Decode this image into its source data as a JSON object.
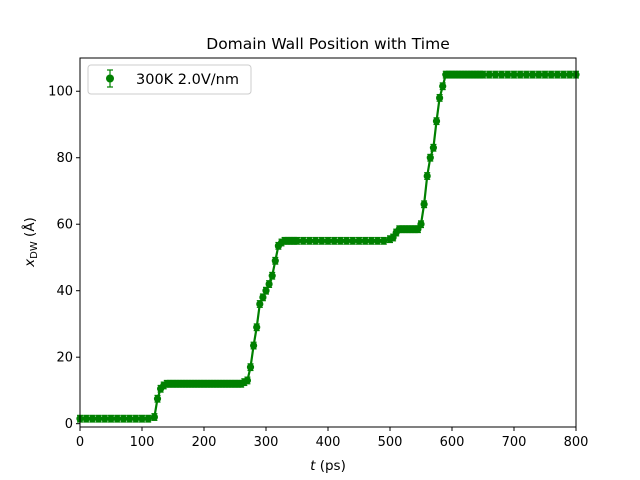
{
  "chart_data": {
    "type": "scatter",
    "title": "Domain Wall Position with Time",
    "xlabel_italic": "t",
    "xlabel_rest": " (ps)",
    "ylabel_main": "x",
    "ylabel_sub": "DW",
    "ylabel_rest": " (Å)",
    "xlim": [
      0,
      800
    ],
    "ylim": [
      -1,
      110
    ],
    "xticks": [
      0,
      100,
      200,
      300,
      400,
      500,
      600,
      700,
      800
    ],
    "yticks": [
      0,
      20,
      40,
      60,
      80,
      100
    ],
    "grid": false,
    "legend": {
      "position": "top-left",
      "entries": [
        "300K 2.0V/nm"
      ]
    },
    "series": [
      {
        "name": "300K 2.0V/nm",
        "color": "#008000",
        "x": [
          0,
          10,
          20,
          30,
          40,
          50,
          60,
          70,
          80,
          90,
          100,
          110,
          120,
          125,
          130,
          135,
          140,
          145,
          150,
          155,
          160,
          165,
          170,
          175,
          180,
          185,
          190,
          195,
          200,
          205,
          210,
          215,
          220,
          225,
          230,
          235,
          240,
          245,
          250,
          255,
          260,
          265,
          270,
          275,
          280,
          285,
          290,
          295,
          300,
          305,
          310,
          315,
          320,
          325,
          330,
          335,
          340,
          345,
          350,
          360,
          370,
          380,
          390,
          400,
          410,
          420,
          430,
          440,
          450,
          460,
          470,
          480,
          490,
          500,
          505,
          510,
          515,
          520,
          525,
          530,
          535,
          540,
          545,
          550,
          555,
          560,
          565,
          570,
          575,
          580,
          585,
          590,
          595,
          600,
          605,
          610,
          615,
          620,
          625,
          630,
          635,
          640,
          645,
          650,
          660,
          670,
          680,
          690,
          700,
          710,
          720,
          730,
          740,
          750,
          760,
          770,
          780,
          790,
          800
        ],
        "y": [
          1.5,
          1.5,
          1.5,
          1.5,
          1.5,
          1.5,
          1.5,
          1.5,
          1.5,
          1.5,
          1.5,
          1.5,
          2.0,
          7.5,
          10.5,
          11.5,
          12.0,
          12.0,
          12.0,
          12.0,
          12.0,
          12.0,
          12.0,
          12.0,
          12.0,
          12.0,
          12.0,
          12.0,
          12.0,
          12.0,
          12.0,
          12.0,
          12.0,
          12.0,
          12.0,
          12.0,
          12.0,
          12.0,
          12.0,
          12.0,
          12.0,
          12.5,
          13.0,
          17.0,
          23.5,
          29.0,
          36.0,
          38.0,
          40.0,
          42.0,
          44.5,
          49.0,
          53.5,
          54.5,
          55.0,
          55.0,
          55.0,
          55.0,
          55.0,
          55.0,
          55.0,
          55.0,
          55.0,
          55.0,
          55.0,
          55.0,
          55.0,
          55.0,
          55.0,
          55.0,
          55.0,
          55.0,
          55.0,
          55.5,
          56.0,
          57.5,
          58.5,
          58.5,
          58.5,
          58.5,
          58.5,
          58.5,
          58.5,
          60.0,
          66.0,
          74.5,
          80.0,
          83.0,
          91.0,
          98.0,
          101.5,
          105.0,
          105.0,
          105.0,
          105.0,
          105.0,
          105.0,
          105.0,
          105.0,
          105.0,
          105.0,
          105.0,
          105.0,
          105.0,
          105.0,
          105.0,
          105.0,
          105.0,
          105.0,
          105.0,
          105.0,
          105.0,
          105.0,
          105.0,
          105.0,
          105.0,
          105.0,
          105.0,
          105.0
        ],
        "yerr": 1.0
      }
    ]
  }
}
